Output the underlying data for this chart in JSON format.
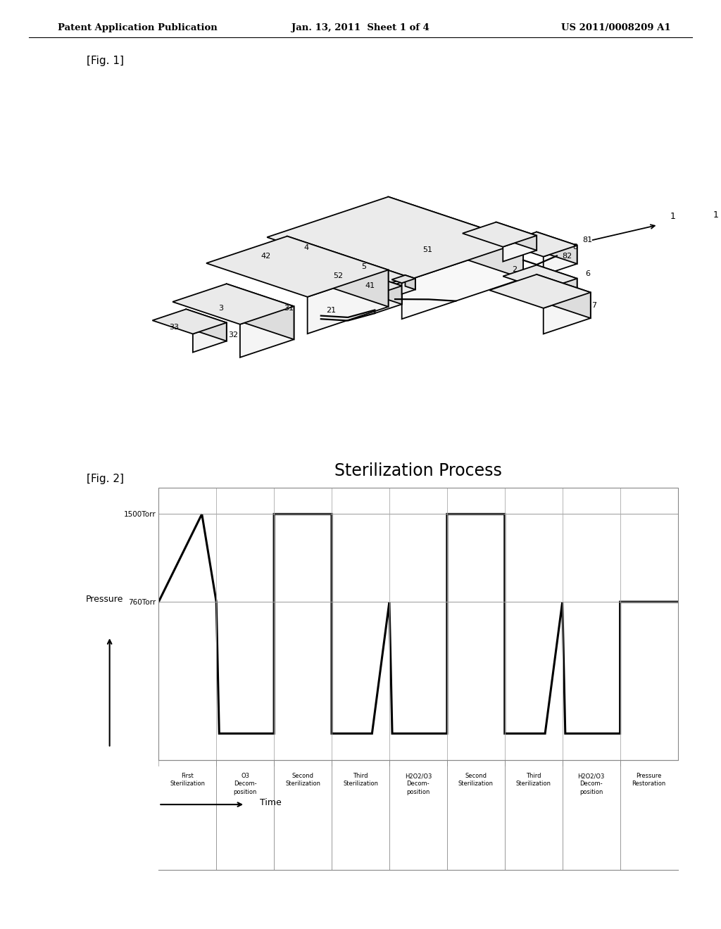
{
  "header_left": "Patent Application Publication",
  "header_center": "Jan. 13, 2011  Sheet 1 of 4",
  "header_right": "US 2011/0008209 A1",
  "fig1_label": "[Fig. 1]",
  "fig2_label": "[Fig. 2]",
  "chart_title": "Sterilization Process",
  "y_label": "Pressure",
  "x_label": "Time",
  "y_tick_1500": "1500Torr",
  "y_tick_760": "760Torr",
  "phases": [
    "First\nSterilization",
    "O3\nDecom-\nposition",
    "Second\nSterilization",
    "Third\nSterilization",
    "H2O2/O3\nDecom-\nposition",
    "Second\nSterilization",
    "Third\nSterilization",
    "H2O2/O3\nDecom-\nposition",
    "Pressure\nRestoration"
  ],
  "background_color": "#ffffff",
  "line_color": "#000000",
  "grid_color": "#cccccc",
  "HIGH": 1.0,
  "MID": 0.6,
  "LOW": 0.0
}
